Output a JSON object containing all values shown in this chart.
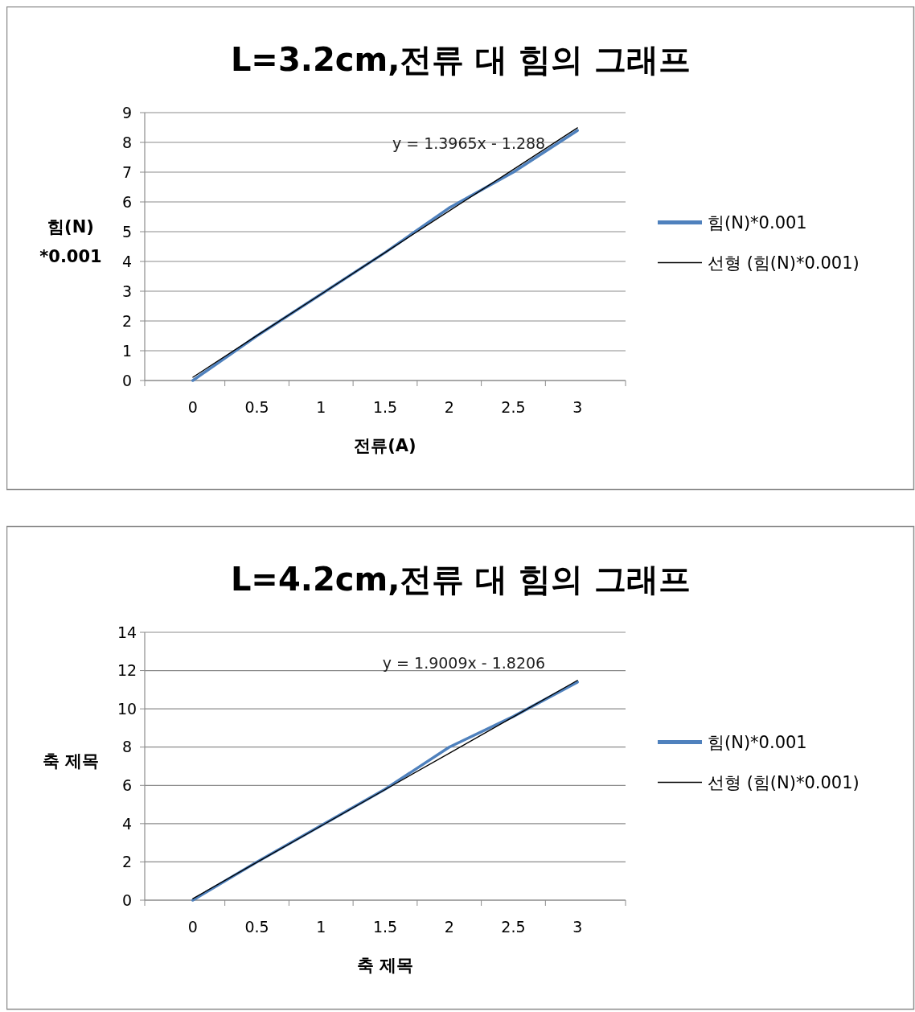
{
  "chart_data": [
    {
      "type": "line",
      "title": "L=3.2cm,전류 대 힘의 그래프",
      "xlabel": "전류(A)",
      "ylabel": "힘(N)*0.001",
      "categories": [
        "0",
        "0.5",
        "1",
        "1.5",
        "2",
        "2.5",
        "3"
      ],
      "ylim": [
        0,
        9
      ],
      "yticks": [
        0,
        1,
        2,
        3,
        4,
        5,
        6,
        7,
        8,
        9
      ],
      "grid": "y",
      "legend": "right",
      "series": [
        {
          "name": "힘(N)*0.001",
          "color": "#4f81bd",
          "values": [
            0,
            1.5,
            2.9,
            4.3,
            5.8,
            7.0,
            8.4
          ]
        },
        {
          "name": "선형 (힘(N)*0.001)",
          "color": "#000000",
          "values": [
            0.11,
            1.51,
            2.9,
            4.3,
            5.7,
            7.09,
            8.49
          ]
        }
      ],
      "annotations": [
        "y = 1.3965x - 1.288"
      ]
    },
    {
      "type": "line",
      "title": "L=4.2cm,전류 대 힘의 그래프",
      "xlabel": "축 제목",
      "ylabel": "축 제목",
      "categories": [
        "0",
        "0.5",
        "1",
        "1.5",
        "2",
        "2.5",
        "3"
      ],
      "ylim": [
        0,
        14
      ],
      "yticks": [
        0,
        2,
        4,
        6,
        8,
        10,
        12,
        14
      ],
      "grid": "y",
      "legend": "right",
      "series": [
        {
          "name": "힘(N)*0.001",
          "color": "#4f81bd",
          "values": [
            0,
            2.0,
            3.9,
            5.8,
            8.0,
            9.6,
            11.4
          ]
        },
        {
          "name": "선형 (힘(N)*0.001)",
          "color": "#000000",
          "values": [
            0.08,
            1.98,
            3.88,
            5.78,
            7.68,
            9.58,
            11.49
          ]
        }
      ],
      "annotations": [
        "y = 1.9009x - 1.8206"
      ]
    }
  ]
}
